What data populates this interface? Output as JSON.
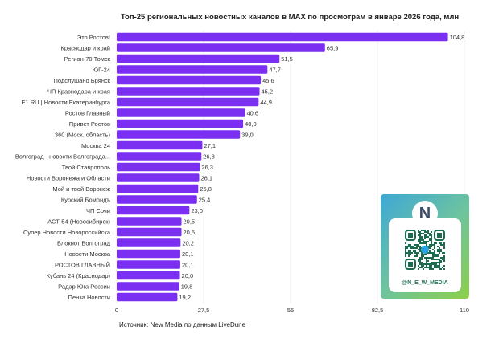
{
  "chart_data": {
    "type": "bar",
    "orientation": "horizontal",
    "title": "Топ-25 региональных новостных каналов в MAX по просмотрам в январе 2026 года, млн",
    "categories": [
      "Это Ростов!",
      "Краснодар и край",
      "Регион-70 Томск",
      "ЮГ-24",
      "Подслушано Брянск",
      "ЧП Краснодара и края",
      "E1.RU | Новости Екатеринбурга",
      "Ростов Главный",
      "Привет Ростов",
      "360 (Моск. область)",
      "Москва 24",
      "Волгоград - новости Волгограда...",
      "Твой Ставрополь",
      "Новости Воронежа и Области",
      "Мой и твой Воронеж",
      "Курский Бомондъ",
      "ЧП Сочи",
      "АСТ-54 (Новосибирск)",
      "Супер Новости Новороссийска",
      "Блокнот Волгоград",
      "Новости Москва",
      "РОСТОВ ГЛАВНЫЙ",
      "Кубань 24 (Краснодар)",
      "Радар Юга России",
      "Пенза Новости"
    ],
    "values": [
      104.8,
      65.9,
      51.5,
      47.7,
      45.6,
      45.2,
      44.9,
      40.6,
      40.0,
      39.0,
      27.1,
      26.8,
      26.3,
      26.1,
      25.8,
      25.4,
      23.0,
      20.5,
      20.5,
      20.2,
      20.1,
      20.1,
      20.0,
      19.8,
      19.2
    ],
    "value_labels": [
      "104,8",
      "65,9",
      "51,5",
      "47,7",
      "45,6",
      "45,2",
      "44,9",
      "40,6",
      "40,0",
      "39,0",
      "27,1",
      "26,8",
      "26,3",
      "26,1",
      "25,8",
      "25,4",
      "23,0",
      "20,5",
      "20,5",
      "20,2",
      "20,1",
      "20,1",
      "20,0",
      "19,8",
      "19,2"
    ],
    "xlim": [
      0,
      110
    ],
    "xticks": [
      0,
      27.5,
      55,
      82.5,
      110
    ],
    "xtick_labels": [
      "0",
      "27,5",
      "55",
      "82,5",
      "110"
    ],
    "xlabel": "",
    "ylabel": "",
    "bar_color": "#7b2ff0",
    "grid": true,
    "legend": "none"
  },
  "source": "Источник: New Media по данным LiveDune",
  "qr": {
    "logo_letter": "N",
    "logo_caption": "New Media",
    "handle": "@N_E_W_MEDIA"
  }
}
